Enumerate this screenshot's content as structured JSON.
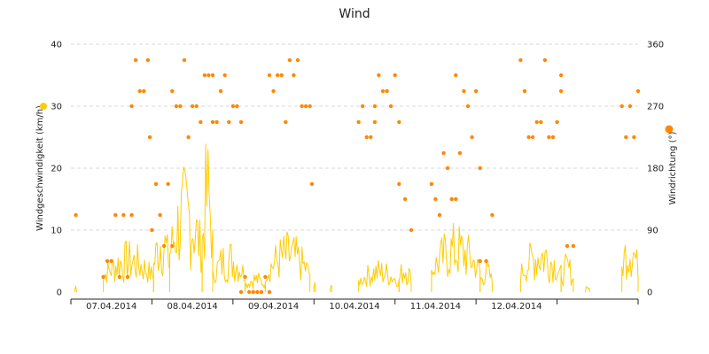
{
  "chart_data": {
    "type": "line",
    "title": "Wind",
    "grid": "horizontal dashed",
    "x": {
      "ticks": [
        "07.04.2014",
        "08.04.2014",
        "09.04.2014",
        "10.04.2014",
        "11.04.2014",
        "12.04.2014"
      ],
      "range_days": [
        0,
        7
      ]
    },
    "y_left": {
      "label": "Windgeschwindigkeit (km/h)",
      "ylim": [
        0,
        40
      ],
      "ticks": [
        "0",
        "10",
        "20",
        "30",
        "40"
      ],
      "marker_color": "#ffcc00"
    },
    "y_right": {
      "label": "Windrichtung (°)",
      "ylim": [
        0,
        360
      ],
      "ticks": [
        "0",
        "90",
        "180",
        "270",
        "360"
      ],
      "marker_color": "#ff8800"
    },
    "series": [
      {
        "type": "line",
        "axis": "left",
        "color": "#ffcc00",
        "segments": [
          {
            "start": 0.05,
            "end": 0.07,
            "peak": 1.5
          },
          {
            "start": 0.4,
            "end": 1.02,
            "peak": 8.5
          },
          {
            "start": 1.02,
            "end": 1.22,
            "peak": 14.0
          },
          {
            "start": 1.22,
            "end": 1.62,
            "peak": 21.0
          },
          {
            "start": 1.62,
            "end": 1.75,
            "peak": 26.0
          },
          {
            "start": 1.75,
            "end": 2.15,
            "peak": 9.0
          },
          {
            "start": 2.15,
            "end": 2.4,
            "peak": 3.5
          },
          {
            "start": 2.4,
            "end": 2.95,
            "peak": 10.0
          },
          {
            "start": 3.0,
            "end": 3.02,
            "peak": 2.0
          },
          {
            "start": 3.2,
            "end": 3.22,
            "peak": 2.0
          },
          {
            "start": 3.55,
            "end": 4.05,
            "peak": 5.5
          },
          {
            "start": 4.05,
            "end": 4.2,
            "peak": 6.5
          },
          {
            "start": 4.45,
            "end": 5.05,
            "peak": 11.5
          },
          {
            "start": 5.05,
            "end": 5.2,
            "peak": 5.5
          },
          {
            "start": 5.55,
            "end": 6.05,
            "peak": 10.0
          },
          {
            "start": 6.05,
            "end": 6.2,
            "peak": 6.5
          },
          {
            "start": 6.35,
            "end": 6.4,
            "peak": 1.5
          },
          {
            "start": 6.8,
            "end": 7.0,
            "peak": 12.5
          }
        ]
      },
      {
        "type": "scatter",
        "axis": "right",
        "color": "#ff8800",
        "segments": [
          {
            "start": 0.05,
            "end": 0.07,
            "levels": [
              112
            ]
          },
          {
            "start": 0.4,
            "end": 0.75,
            "levels": [
              22,
              45,
              112,
              157,
              180,
              202,
              225
            ]
          },
          {
            "start": 0.75,
            "end": 0.95,
            "levels": [
              247,
              270,
              292,
              315,
              337
            ]
          },
          {
            "start": 0.95,
            "end": 1.0,
            "levels": [
              225
            ]
          },
          {
            "start": 1.0,
            "end": 1.25,
            "levels": [
              45,
              67,
              90,
              112,
              135,
              157,
              180
            ]
          },
          {
            "start": 1.25,
            "end": 1.75,
            "levels": [
              225,
              247,
              270,
              292,
              315,
              337
            ]
          },
          {
            "start": 1.75,
            "end": 2.1,
            "levels": [
              247,
              270,
              292,
              315,
              337
            ]
          },
          {
            "start": 2.1,
            "end": 2.45,
            "levels": [
              0,
              22
            ]
          },
          {
            "start": 2.45,
            "end": 2.95,
            "levels": [
              247,
              270,
              292,
              315,
              337
            ]
          },
          {
            "start": 2.95,
            "end": 3.0,
            "levels": [
              157
            ]
          },
          {
            "start": 3.55,
            "end": 3.75,
            "levels": [
              202,
              225,
              247,
              270
            ]
          },
          {
            "start": 3.75,
            "end": 4.05,
            "levels": [
              247,
              270,
              292,
              315,
              337
            ]
          },
          {
            "start": 4.05,
            "end": 4.2,
            "levels": [
              90,
              135,
              157,
              180,
              202
            ]
          },
          {
            "start": 4.45,
            "end": 4.75,
            "levels": [
              112,
              135,
              157,
              180,
              202
            ]
          },
          {
            "start": 4.75,
            "end": 5.05,
            "levels": [
              180,
              202,
              225,
              247,
              270,
              292,
              315
            ]
          },
          {
            "start": 5.05,
            "end": 5.2,
            "levels": [
              45,
              67,
              112,
              135
            ]
          },
          {
            "start": 5.55,
            "end": 6.05,
            "levels": [
              225,
              247,
              270,
              292,
              315,
              337
            ]
          },
          {
            "start": 6.05,
            "end": 6.2,
            "levels": [
              67,
              315
            ]
          },
          {
            "start": 6.8,
            "end": 7.0,
            "levels": [
              225,
              247,
              270,
              292,
              315,
              337
            ]
          }
        ]
      }
    ]
  }
}
